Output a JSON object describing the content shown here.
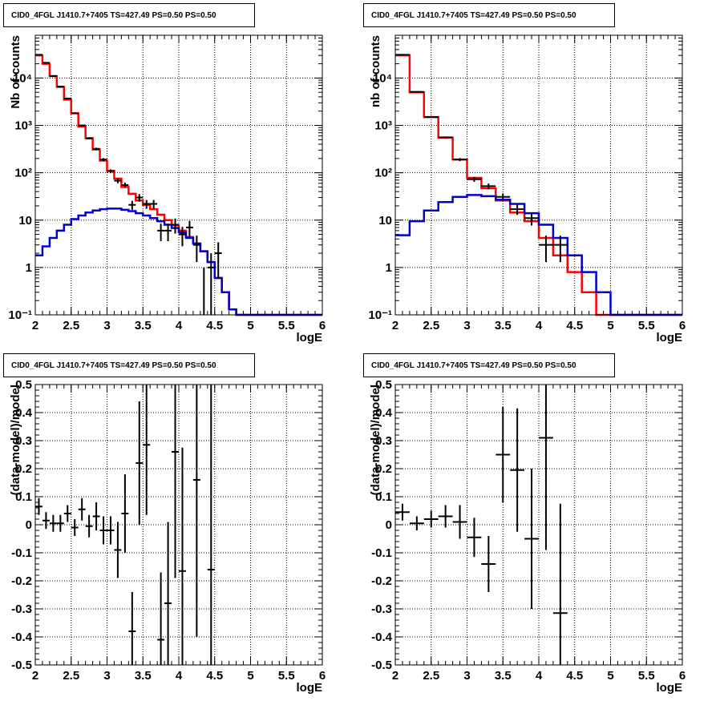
{
  "panels": [
    {
      "title": "CID0_4FGL J1410.7+7405 TS=427.49 PS=0.50 PS=0.50",
      "xlabel": "logE",
      "ylabel": "Nb of counts"
    },
    {
      "title": "CID0_4FGL J1410.7+7405 TS=427.49 PS=0.50 PS=0.50",
      "xlabel": "logE",
      "ylabel": "nb of counts"
    },
    {
      "title": "CID0_4FGL J1410.7+7405 TS=427.49 PS=0.50 PS=0.50",
      "xlabel": "logE",
      "ylabel": "(data-model)/model"
    },
    {
      "title": "CID0_4FGL J1410.7+7405 TS=427.49 PS=0.50 PS=0.50",
      "xlabel": "logE",
      "ylabel": "(data-model)/model"
    }
  ],
  "chart_data": [
    {
      "type": "line",
      "title": "CID0_4FGL J1410.7+7405 TS=427.49 PS=0.50 PS=0.50",
      "xlabel": "logE",
      "ylabel": "Nb of counts",
      "xlim": [
        2,
        6
      ],
      "ylim": [
        0.1,
        80000
      ],
      "yscale": "log",
      "grid": true,
      "xticks": [
        "2",
        "2.5",
        "3",
        "3.5",
        "4",
        "4.5",
        "5",
        "5.5",
        "6"
      ],
      "yticks": [
        "10⁻¹",
        "1",
        "10",
        "10²",
        "10³",
        "10⁴"
      ],
      "bin_edges": [
        2,
        2.1,
        2.2,
        2.3,
        2.4,
        2.5,
        2.6,
        2.7,
        2.8,
        2.9,
        3,
        3.1,
        3.2,
        3.3,
        3.4,
        3.5,
        3.6,
        3.7,
        3.8,
        3.9,
        4,
        4.1,
        4.2,
        4.3,
        4.4,
        4.5,
        4.6,
        4.7,
        4.8,
        4.9,
        5,
        5.1,
        5.2,
        5.3,
        5.4,
        5.5,
        5.6,
        5.7,
        5.8,
        5.9,
        6
      ],
      "series": [
        {
          "color": "#ff0000",
          "values": [
            30000,
            20000,
            11000,
            6500,
            3500,
            1800,
            950,
            540,
            310,
            180,
            110,
            75,
            50,
            36,
            26,
            21,
            17,
            13,
            10,
            7.8,
            6.0,
            4.4,
            3.2,
            2.2,
            1.3,
            0.6,
            0.3,
            0.13,
            0.1,
            0.1,
            0.1,
            0.1,
            0.1,
            0.1,
            0.1,
            0.1,
            0.1,
            0.1,
            0.1,
            0.1
          ]
        },
        {
          "color": "#0000cc",
          "values": [
            1.8,
            2.8,
            4.2,
            6.0,
            8.0,
            10.5,
            12.5,
            14.5,
            16.0,
            17.0,
            17.5,
            17.5,
            16.5,
            15.5,
            14.0,
            12.5,
            11.0,
            9.5,
            8.0,
            6.8,
            5.5,
            4.2,
            3.2,
            2.2,
            1.3,
            0.6,
            0.3,
            0.13,
            0.1,
            0.1,
            0.1,
            0.1,
            0.1,
            0.1,
            0.1,
            0.1,
            0.1,
            0.1,
            0.1,
            0.1
          ]
        }
      ],
      "points": [
        {
          "x": 2.05,
          "y": 31000,
          "yerr": 200
        },
        {
          "x": 2.15,
          "y": 21000,
          "yerr": 150
        },
        {
          "x": 2.25,
          "y": 11000,
          "yerr": 100
        },
        {
          "x": 2.35,
          "y": 6600,
          "yerr": 80
        },
        {
          "x": 2.45,
          "y": 3700,
          "yerr": 60
        },
        {
          "x": 2.55,
          "y": 1800,
          "yerr": 40
        },
        {
          "x": 2.65,
          "y": 1000,
          "yerr": 30
        },
        {
          "x": 2.75,
          "y": 530,
          "yerr": 22
        },
        {
          "x": 2.85,
          "y": 320,
          "yerr": 18
        },
        {
          "x": 2.95,
          "y": 190,
          "yerr": 14
        },
        {
          "x": 3.05,
          "y": 108,
          "yerr": 10
        },
        {
          "x": 3.15,
          "y": 68,
          "yerr": 8
        },
        {
          "x": 3.25,
          "y": 55,
          "yerr": 7
        },
        {
          "x": 3.35,
          "y": 21,
          "yerr": 4.5
        },
        {
          "x": 3.45,
          "y": 30,
          "yerr": 5.5
        },
        {
          "x": 3.55,
          "y": 22,
          "yerr": 4.6
        },
        {
          "x": 3.65,
          "y": 22,
          "yerr": 4.6
        },
        {
          "x": 3.75,
          "y": 6,
          "yerr": 2.4
        },
        {
          "x": 3.85,
          "y": 6,
          "yerr": 2.4
        },
        {
          "x": 3.95,
          "y": 8,
          "yerr": 2.8
        },
        {
          "x": 4.05,
          "y": 5,
          "yerr": 2.2
        },
        {
          "x": 4.15,
          "y": 7,
          "yerr": 2.6
        },
        {
          "x": 4.25,
          "y": 3,
          "yerr": 1.7
        },
        {
          "x": 4.35,
          "y": 0,
          "yerr": 0
        },
        {
          "x": 4.45,
          "y": 1,
          "yerr": 1
        },
        {
          "x": 4.55,
          "y": 2,
          "yerr": 1.4
        }
      ]
    },
    {
      "type": "line",
      "title": "CID0_4FGL J1410.7+7405 TS=427.49 PS=0.50 PS=0.50",
      "xlabel": "logE",
      "ylabel": "nb of counts",
      "xlim": [
        2,
        6
      ],
      "ylim": [
        0.1,
        80000
      ],
      "yscale": "log",
      "grid": true,
      "xticks": [
        "2",
        "2.5",
        "3",
        "3.5",
        "4",
        "4.5",
        "5",
        "5.5",
        "6"
      ],
      "yticks": [
        "10⁻¹",
        "1",
        "10",
        "10²",
        "10³",
        "10⁴"
      ],
      "bin_edges": [
        2,
        2.2,
        2.4,
        2.6,
        2.8,
        3,
        3.2,
        3.4,
        3.6,
        3.8,
        4,
        4.2,
        4.4,
        4.6,
        4.8,
        5,
        5.2,
        5.4,
        5.6,
        5.8,
        6
      ],
      "series": [
        {
          "color": "#ff0000",
          "values": [
            30000,
            5000,
            1500,
            550,
            190,
            78,
            47,
            26,
            14.5,
            9.5,
            4.2,
            1.8,
            0.8,
            0.3,
            0.1,
            0.1,
            0.1,
            0.1,
            0.1,
            0.1
          ]
        },
        {
          "color": "#0000cc",
          "values": [
            4.8,
            9.5,
            16,
            24,
            31,
            34,
            32,
            27,
            22,
            14,
            8.0,
            4.2,
            1.8,
            0.8,
            0.3,
            0.1,
            0.1,
            0.1,
            0.1,
            0.1
          ]
        }
      ],
      "points": [
        {
          "x": 2.1,
          "y": 31000,
          "yerr": 200
        },
        {
          "x": 2.3,
          "y": 5100,
          "yerr": 70
        },
        {
          "x": 2.5,
          "y": 1500,
          "yerr": 40
        },
        {
          "x": 2.7,
          "y": 560,
          "yerr": 24
        },
        {
          "x": 2.9,
          "y": 190,
          "yerr": 14
        },
        {
          "x": 3.1,
          "y": 73,
          "yerr": 8.5
        },
        {
          "x": 3.3,
          "y": 52,
          "yerr": 7.2
        },
        {
          "x": 3.5,
          "y": 31,
          "yerr": 5.6
        },
        {
          "x": 3.7,
          "y": 17,
          "yerr": 4.1
        },
        {
          "x": 3.9,
          "y": 11,
          "yerr": 3.3
        },
        {
          "x": 4.1,
          "y": 3,
          "yerr": 1.7
        },
        {
          "x": 4.3,
          "y": 3,
          "yerr": 1.7
        }
      ]
    },
    {
      "type": "scatter",
      "title": "CID0_4FGL J1410.7+7405 TS=427.49 PS=0.50 PS=0.50",
      "xlabel": "logE",
      "ylabel": "(data-model)/model",
      "xlim": [
        2,
        6
      ],
      "ylim": [
        -0.5,
        0.5
      ],
      "grid": true,
      "xticks": [
        "2",
        "2.5",
        "3",
        "3.5",
        "4",
        "4.5",
        "5",
        "5.5",
        "6"
      ],
      "yticks": [
        "-0.5",
        "-0.4",
        "-0.3",
        "-0.2",
        "-0.1",
        "0",
        "0.1",
        "0.2",
        "0.3",
        "0.4",
        "0.5"
      ],
      "xerr": 0.05,
      "points": [
        {
          "x": 2.05,
          "y": 0.065,
          "yerr": 0.03
        },
        {
          "x": 2.15,
          "y": 0.015,
          "yerr": 0.03
        },
        {
          "x": 2.25,
          "y": 0.005,
          "yerr": 0.03
        },
        {
          "x": 2.35,
          "y": 0.005,
          "yerr": 0.03
        },
        {
          "x": 2.45,
          "y": 0.04,
          "yerr": 0.03
        },
        {
          "x": 2.55,
          "y": -0.01,
          "yerr": 0.03
        },
        {
          "x": 2.65,
          "y": 0.055,
          "yerr": 0.04
        },
        {
          "x": 2.75,
          "y": -0.005,
          "yerr": 0.04
        },
        {
          "x": 2.85,
          "y": 0.03,
          "yerr": 0.05
        },
        {
          "x": 2.95,
          "y": -0.02,
          "yerr": 0.05
        },
        {
          "x": 3.05,
          "y": -0.02,
          "yerr": 0.05
        },
        {
          "x": 3.15,
          "y": -0.09,
          "yerr": 0.1
        },
        {
          "x": 3.25,
          "y": 0.04,
          "yerr": 0.14
        },
        {
          "x": 3.35,
          "y": -0.38,
          "yerr": 0.14
        },
        {
          "x": 3.45,
          "y": 0.22,
          "yerr": 0.22
        },
        {
          "x": 3.55,
          "y": 0.285,
          "yerr": 0.25
        },
        {
          "x": 3.75,
          "y": -0.41,
          "yerr": 0.24
        },
        {
          "x": 3.85,
          "y": -0.28,
          "yerr": 0.29
        },
        {
          "x": 3.95,
          "y": 0.26,
          "yerr": 0.45
        },
        {
          "x": 4.05,
          "y": -0.165,
          "yerr": 0.44
        },
        {
          "x": 4.25,
          "y": 0.16,
          "yerr": 0.56
        },
        {
          "x": 4.45,
          "y": -0.16,
          "yerr": 0.8
        }
      ]
    },
    {
      "type": "scatter",
      "title": "CID0_4FGL J1410.7+7405 TS=427.49 PS=0.50 PS=0.50",
      "xlabel": "logE",
      "ylabel": "(data-model)/model",
      "xlim": [
        2,
        6
      ],
      "ylim": [
        -0.5,
        0.5
      ],
      "grid": true,
      "xticks": [
        "2",
        "2.5",
        "3",
        "3.5",
        "4",
        "4.5",
        "5",
        "5.5",
        "6"
      ],
      "yticks": [
        "-0.5",
        "-0.4",
        "-0.3",
        "-0.2",
        "-0.1",
        "0",
        "0.1",
        "0.2",
        "0.3",
        "0.4",
        "0.5"
      ],
      "xerr": 0.1,
      "points": [
        {
          "x": 2.1,
          "y": 0.045,
          "yerr": 0.03
        },
        {
          "x": 2.3,
          "y": 0.005,
          "yerr": 0.025
        },
        {
          "x": 2.5,
          "y": 0.02,
          "yerr": 0.03
        },
        {
          "x": 2.7,
          "y": 0.03,
          "yerr": 0.04
        },
        {
          "x": 2.9,
          "y": 0.01,
          "yerr": 0.06
        },
        {
          "x": 3.1,
          "y": -0.045,
          "yerr": 0.07
        },
        {
          "x": 3.3,
          "y": -0.14,
          "yerr": 0.1
        },
        {
          "x": 3.5,
          "y": 0.25,
          "yerr": 0.17
        },
        {
          "x": 3.7,
          "y": 0.195,
          "yerr": 0.22
        },
        {
          "x": 3.9,
          "y": -0.05,
          "yerr": 0.25
        },
        {
          "x": 4.1,
          "y": 0.31,
          "yerr": 0.4
        },
        {
          "x": 4.3,
          "y": -0.315,
          "yerr": 0.39
        }
      ]
    }
  ]
}
